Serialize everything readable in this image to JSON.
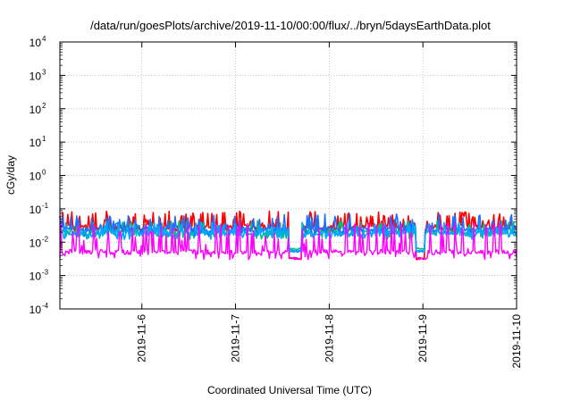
{
  "chart_data": {
    "type": "line",
    "title": "/data/run/goesPlots/archive/2019-11-10/00:00/flux/../bryn/5daysEarthData.plot",
    "xlabel": "Coordinated Universal Time (UTC)",
    "ylabel": "cGy/day",
    "y_scale": "log",
    "ylim": [
      0.0001,
      10000
    ],
    "y_ticks": [
      {
        "base": "10",
        "exp": "4",
        "value": 10000
      },
      {
        "base": "10",
        "exp": "3",
        "value": 1000
      },
      {
        "base": "10",
        "exp": "2",
        "value": 100
      },
      {
        "base": "10",
        "exp": "1",
        "value": 10
      },
      {
        "base": "10",
        "exp": "0",
        "value": 1
      },
      {
        "base": "10",
        "exp": "-1",
        "value": 0.1
      },
      {
        "base": "10",
        "exp": "-2",
        "value": 0.01
      },
      {
        "base": "10",
        "exp": "-3",
        "value": 0.001
      },
      {
        "base": "10",
        "exp": "-4",
        "value": 0.0001
      }
    ],
    "xlim": [
      "2019-11-05 03:00",
      "2019-11-10 00:00"
    ],
    "x_ticks": [
      "2019-11-6",
      "2019-11-7",
      "2019-11-8",
      "2019-11-9",
      "2019-11-10"
    ],
    "grid": true,
    "legend": "none",
    "series": [
      {
        "color": "#ff0000",
        "base": 0.028,
        "spike_max": 0.085,
        "min": 0.018,
        "dip": 0.003
      },
      {
        "color": "#00c080",
        "base": 0.02,
        "spike_max": 0.045,
        "min": 0.012,
        "dip": 0.006
      },
      {
        "color": "#1e6fff",
        "base": 0.024,
        "spike_max": 0.07,
        "min": 0.015,
        "dip": 0.005
      },
      {
        "color": "#00a8ff",
        "base": 0.018,
        "spike_max": 0.04,
        "min": 0.012,
        "dip": 0.005
      },
      {
        "color": "#ff00ff",
        "base": 0.005,
        "spike_max": 0.04,
        "min": 0.003,
        "dip": 0.003
      }
    ]
  }
}
